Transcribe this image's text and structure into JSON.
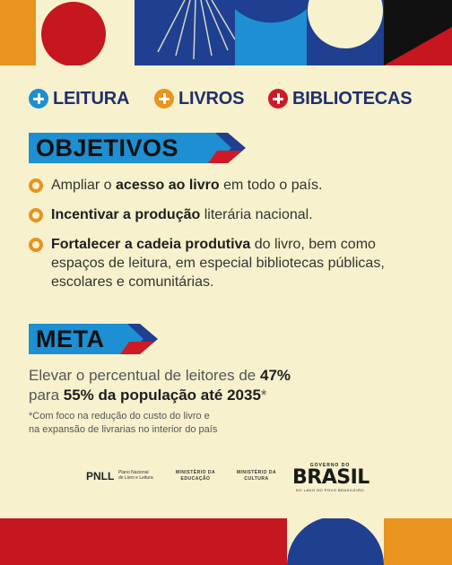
{
  "header": {
    "items": [
      {
        "label": "LEITURA",
        "color": "#1d8fd2"
      },
      {
        "label": "LIVROS",
        "color": "#e8941e"
      },
      {
        "label": "BIBLIOTECAS",
        "color": "#cf1a26"
      }
    ]
  },
  "objectives": {
    "title": "OBJETIVOS",
    "items": [
      {
        "before": "Ampliar o ",
        "bold": "acesso ao livro",
        "after": " em todo o país."
      },
      {
        "before": "",
        "bold": "Incentivar a produção",
        "after": " literária nacional."
      },
      {
        "before": "",
        "bold": "Fortalecer a cadeia produtiva",
        "after": " do livro, bem como espaços de leitura, em especial bibliotecas públicas, escolares e comunitárias."
      }
    ]
  },
  "meta": {
    "title": "META",
    "line1_before": "Elevar o percentual de leitores de ",
    "line1_bold": "47%",
    "line2_before": "para ",
    "line2_bold": "55% da população até 2035",
    "line2_after": "*",
    "footnote_line1": "*Com foco na redução do custo do livro e",
    "footnote_line2": "na expansão de livrarias no interior do país"
  },
  "logos": {
    "pnll": "PNLL",
    "pnll_sub_line1": "Plano Nacional",
    "pnll_sub_line2": "do Livro e Leitura",
    "min_educacao_line1": "MINISTÉRIO DA",
    "min_educacao_line2": "EDUCAÇÃO",
    "min_cultura_line1": "MINISTÉRIO DA",
    "min_cultura_line2": "CULTURA",
    "gov_top": "GOVERNO DO",
    "gov_brasil": "BRASIL",
    "gov_sub": "DO LADO DO POVO BRASILEIRO"
  },
  "colors": {
    "background": "#f7f2cd",
    "navy": "#1f3f91",
    "blue": "#1d8fd2",
    "orange": "#e8941e",
    "red": "#cf1a26"
  }
}
